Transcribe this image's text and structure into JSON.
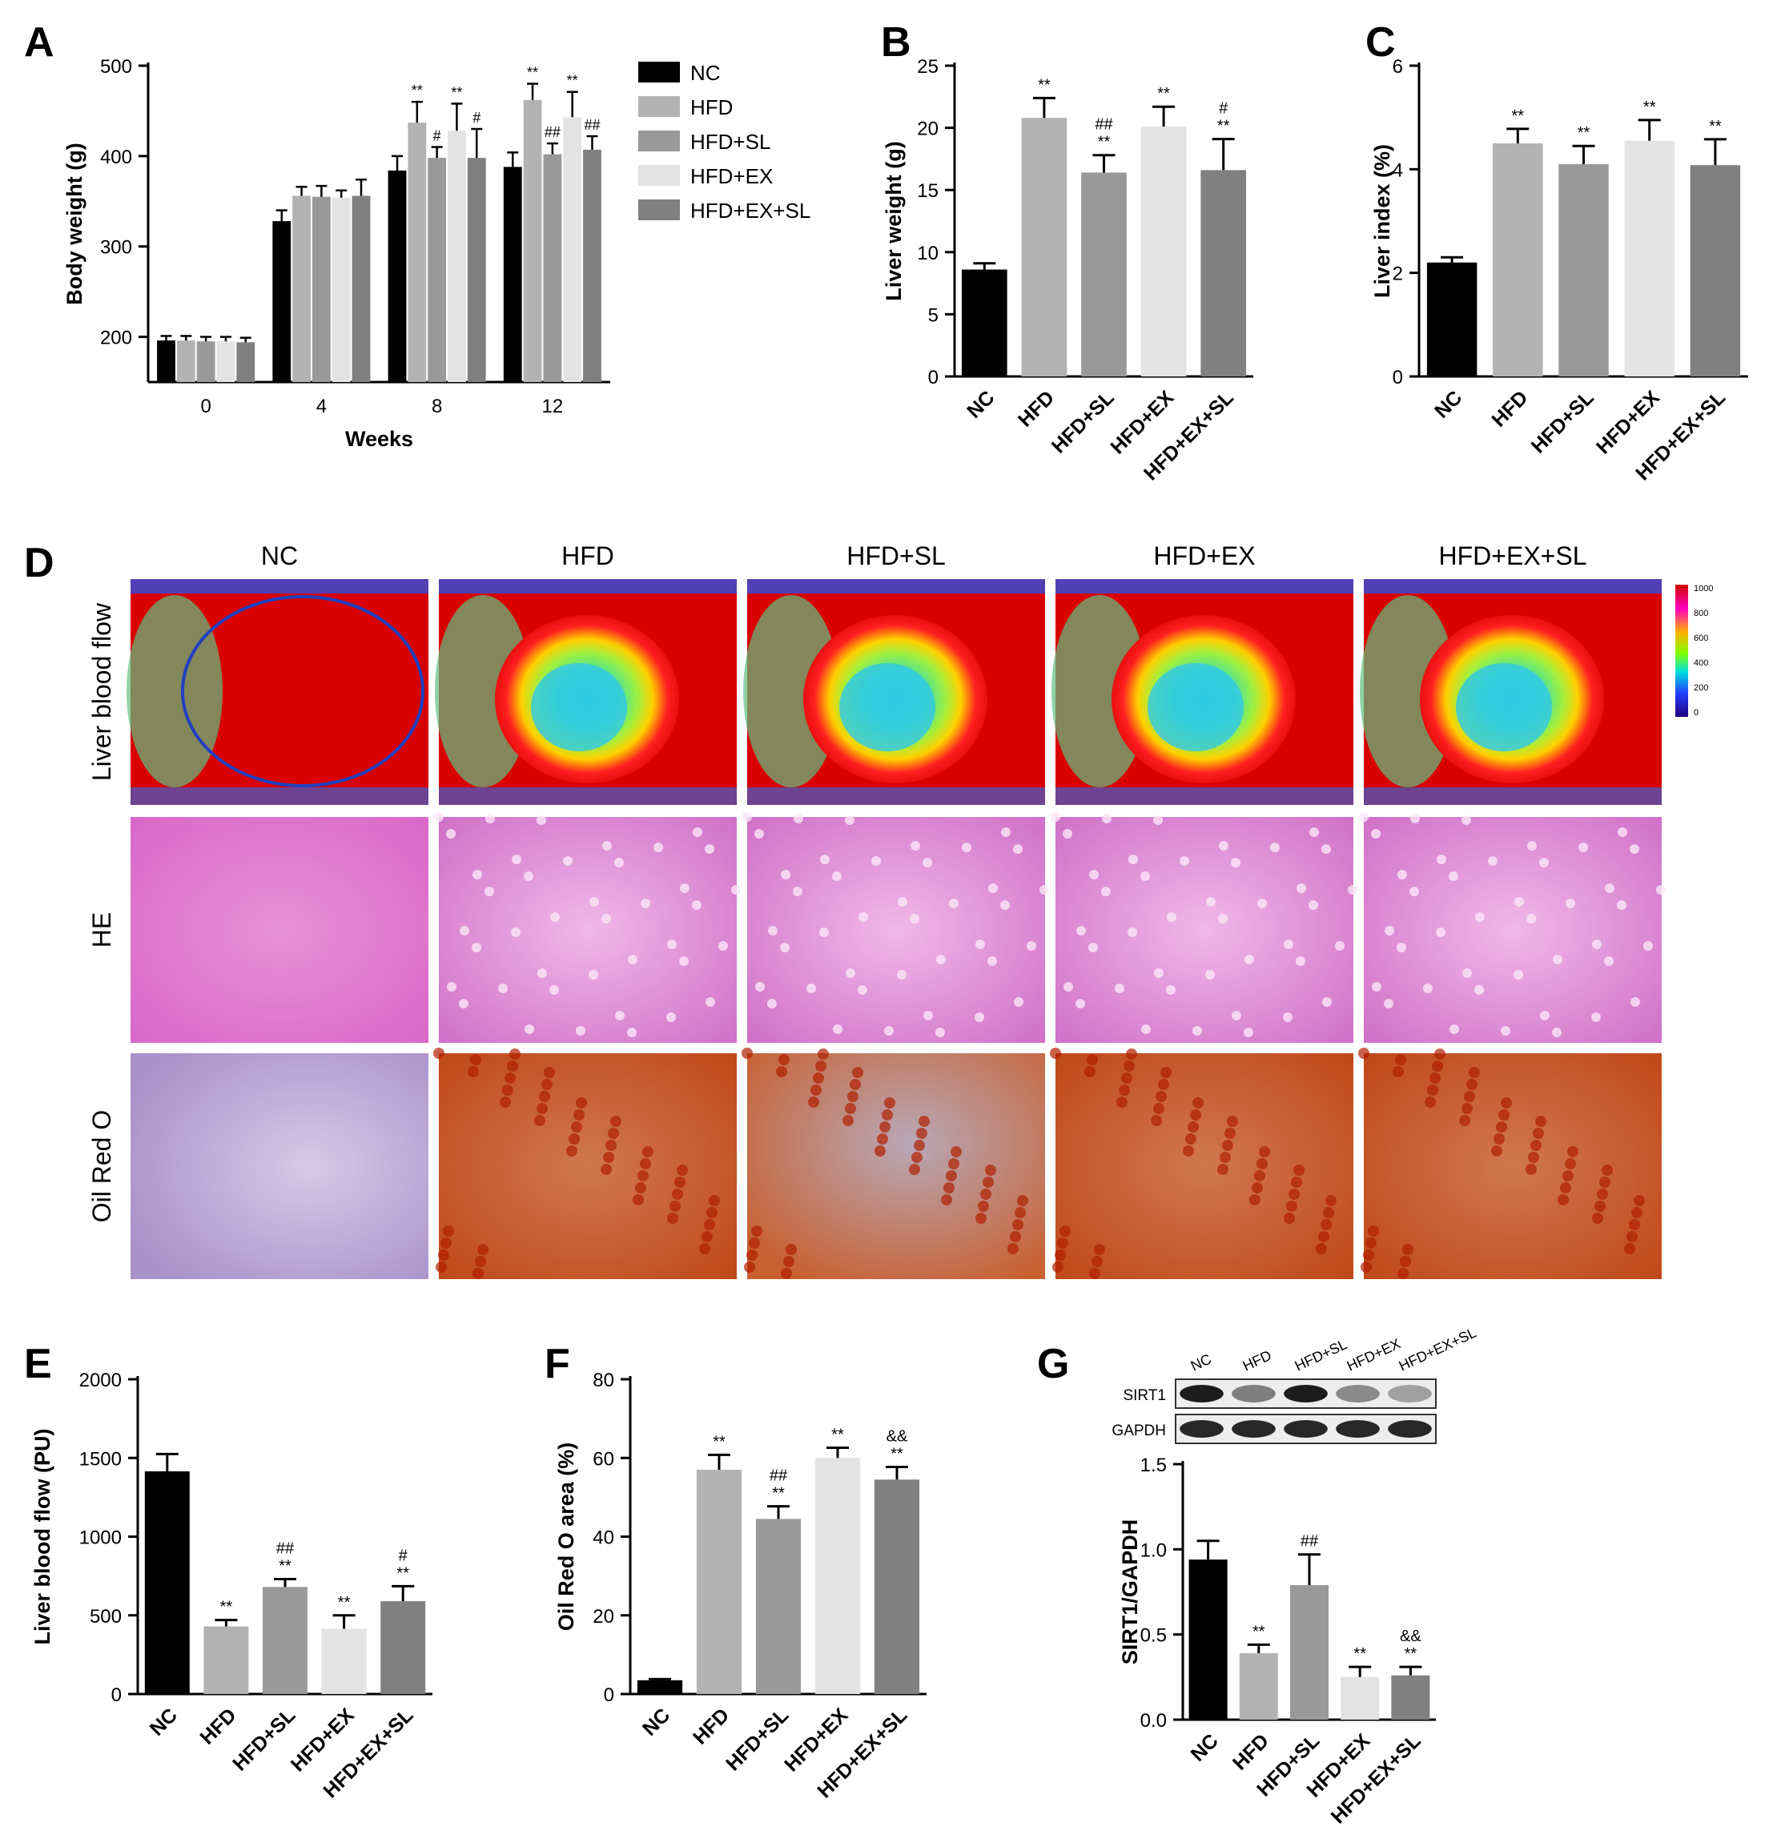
{
  "colors": {
    "NC": "#000000",
    "HFD": "#b3b3b3",
    "HFD+SL": "#999999",
    "HFD+EX": "#e3e3e3",
    "HFD+EX+SL": "#808080"
  },
  "groups": [
    "NC",
    "HFD",
    "HFD+SL",
    "HFD+EX",
    "HFD+EX+SL"
  ],
  "panel_letters": [
    "A",
    "B",
    "C",
    "D",
    "E",
    "F",
    "G"
  ],
  "chart_data": [
    {
      "id": "A",
      "type": "bar",
      "xlabel": "Weeks",
      "ylabel": "Body weight (g)",
      "ylim": [
        150,
        500
      ],
      "yticks": [
        200,
        300,
        400,
        500
      ],
      "categories": [
        "0",
        "4",
        "8",
        "12"
      ],
      "legend_position": "right",
      "series": [
        {
          "name": "NC",
          "values": [
            196,
            328,
            384,
            388
          ],
          "errors": [
            5,
            12,
            16,
            16
          ],
          "annotations": [
            "",
            "",
            "",
            ""
          ]
        },
        {
          "name": "HFD",
          "values": [
            196,
            356,
            437,
            462
          ],
          "errors": [
            5,
            10,
            23,
            18
          ],
          "annotations": [
            "",
            "",
            "**",
            "**"
          ]
        },
        {
          "name": "HFD+SL",
          "values": [
            195,
            355,
            398,
            402
          ],
          "errors": [
            5,
            12,
            12,
            12
          ],
          "annotations": [
            "",
            "",
            "#",
            "##"
          ]
        },
        {
          "name": "HFD+EX",
          "values": [
            195,
            354,
            428,
            443
          ],
          "errors": [
            5,
            8,
            30,
            28
          ],
          "annotations": [
            "",
            "",
            "**",
            "**"
          ]
        },
        {
          "name": "HFD+EX+SL",
          "values": [
            194,
            356,
            398,
            407
          ],
          "errors": [
            5,
            18,
            32,
            15
          ],
          "annotations": [
            "",
            "",
            "#",
            "##"
          ]
        }
      ]
    },
    {
      "id": "B",
      "type": "bar",
      "ylabel": "Liver weight (g)",
      "ylim": [
        0,
        25
      ],
      "yticks": [
        0,
        5,
        10,
        15,
        20,
        25
      ],
      "categories": [
        "NC",
        "HFD",
        "HFD+SL",
        "HFD+EX",
        "HFD+EX+SL"
      ],
      "values": [
        8.6,
        20.8,
        16.4,
        20.1,
        16.6
      ],
      "errors": [
        0.5,
        1.6,
        1.4,
        1.6,
        2.5
      ],
      "annotations": [
        [],
        [
          "**"
        ],
        [
          "##",
          "**"
        ],
        [
          "**"
        ],
        [
          "#",
          "**"
        ]
      ]
    },
    {
      "id": "C",
      "type": "bar",
      "ylabel": "Liver index (%)",
      "ylim": [
        0,
        6
      ],
      "yticks": [
        0,
        2,
        4,
        6
      ],
      "categories": [
        "NC",
        "HFD",
        "HFD+SL",
        "HFD+EX",
        "HFD+EX+SL"
      ],
      "values": [
        2.2,
        4.5,
        4.1,
        4.55,
        4.08
      ],
      "errors": [
        0.1,
        0.28,
        0.35,
        0.4,
        0.5
      ],
      "annotations": [
        [],
        [
          "**"
        ],
        [
          "**"
        ],
        [
          "**"
        ],
        [
          "**"
        ]
      ]
    },
    {
      "id": "E",
      "type": "bar",
      "ylabel": "Liver blood flow (PU)",
      "ylim": [
        0,
        2000
      ],
      "yticks": [
        0,
        500,
        1000,
        1500,
        2000
      ],
      "categories": [
        "NC",
        "HFD",
        "HFD+SL",
        "HFD+EX",
        "HFD+EX+SL"
      ],
      "values": [
        1415,
        430,
        680,
        415,
        590
      ],
      "errors": [
        110,
        40,
        50,
        85,
        95
      ],
      "annotations": [
        [],
        [
          "**"
        ],
        [
          "##",
          "**"
        ],
        [
          "**"
        ],
        [
          "#",
          "**"
        ]
      ]
    },
    {
      "id": "F",
      "type": "bar",
      "ylabel": "Oil Red O area (%)",
      "ylim": [
        0,
        80
      ],
      "yticks": [
        0,
        20,
        40,
        60,
        80
      ],
      "categories": [
        "NC",
        "HFD",
        "HFD+SL",
        "HFD+EX",
        "HFD+EX+SL"
      ],
      "values": [
        3.5,
        57,
        44.5,
        60,
        54.5
      ],
      "errors": [
        0.3,
        3.8,
        3.2,
        2.6,
        3.2
      ],
      "annotations": [
        [],
        [
          "**"
        ],
        [
          "##",
          "**"
        ],
        [
          "**"
        ],
        [
          "&&",
          "**"
        ]
      ]
    },
    {
      "id": "G",
      "type": "bar",
      "ylabel": "SIRT1/GAPDH",
      "ylim": [
        0,
        1.5
      ],
      "yticks": [
        0.0,
        0.5,
        1.0,
        1.5
      ],
      "ytick_labels": [
        "0.0",
        "0.5",
        "1.0",
        "1.5"
      ],
      "categories": [
        "NC",
        "HFD",
        "HFD+SL",
        "HFD+EX",
        "HFD+EX+SL"
      ],
      "values": [
        0.94,
        0.39,
        0.79,
        0.25,
        0.26
      ],
      "errors": [
        0.11,
        0.05,
        0.18,
        0.06,
        0.05
      ],
      "annotations": [
        [],
        [
          "**"
        ],
        [
          "##"
        ],
        [
          "**"
        ],
        [
          "&&",
          "**"
        ]
      ]
    }
  ],
  "panel_D": {
    "column_titles": [
      "NC",
      "HFD",
      "HFD+SL",
      "HFD+EX",
      "HFD+EX+SL"
    ],
    "row_labels": [
      "Liver blood flow",
      "HE",
      "Oil Red O"
    ],
    "colorbar_ticks": [
      "1000",
      "800",
      "600",
      "400",
      "200",
      "0"
    ]
  },
  "panel_G_blot": {
    "lanes": [
      "NC",
      "HFD",
      "HFD+SL",
      "HFD+EX",
      "HFD+EX+SL"
    ],
    "rows": [
      "SIRT1",
      "GAPDH"
    ],
    "sirt1_band_strength": [
      0.95,
      0.5,
      0.95,
      0.45,
      0.35
    ],
    "gapdh_band_strength": [
      0.9,
      0.9,
      0.9,
      0.9,
      0.9
    ]
  }
}
